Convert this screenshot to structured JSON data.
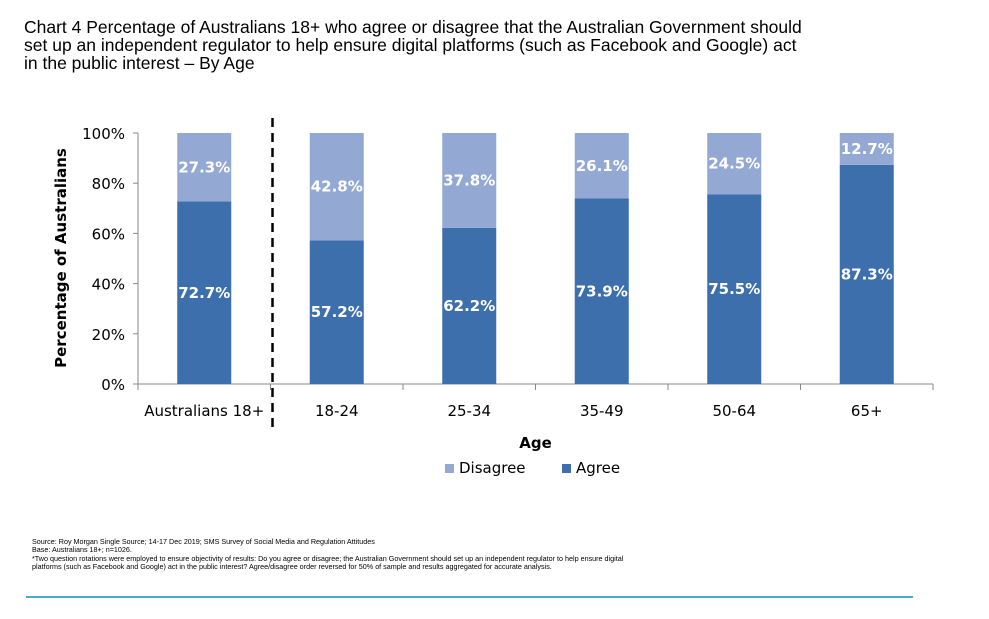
{
  "title_lines": [
    "Chart 4 Percentage of Australians 18+ who agree or disagree that the Australian Government should",
    "set up an independent regulator to help ensure digital platforms (such as Facebook and Google) act",
    "in the public interest – By Age"
  ],
  "source_lines": [
    "Source:  Roy  Morgan  Single  Source;  14-17  Dec  2019;  SMS  Survey  of  Social  Media  and  Regulation    Attitudes",
    "Base:  Australians  18+;  n=1026.",
    "*Two  question  rotations  were  employed  to ensure  objectivity  of  results:  Do you  agree  or  disagree;  the Australian  Government  should  set  up  an independent    regulator  to help  ensure  digital",
    "platforms  (such  as  Facebook  and  Google)  act  in the public  interest?  Agree/disagree   order  reversed  for  50%  of  sample  and  results  aggregated  for accurate  analysis."
  ],
  "colors": {
    "agree": "#3d6fad",
    "disagree": "#93a9d4",
    "label": "#ffffff",
    "rule": "#4bacc6"
  },
  "chart_data": {
    "type": "bar",
    "stacked": true,
    "categories": [
      "Australians 18+",
      "18-24",
      "25-34",
      "35-49",
      "50-64",
      "65+"
    ],
    "series": [
      {
        "name": "Agree",
        "values": [
          72.7,
          57.2,
          62.2,
          73.9,
          75.5,
          87.3
        ],
        "labels": [
          "72.7%",
          "57.2%",
          "62.2%",
          "73.9%",
          "75.5%",
          "87.3%"
        ]
      },
      {
        "name": "Disagree",
        "values": [
          27.3,
          42.8,
          37.8,
          26.1,
          24.5,
          12.7
        ],
        "labels": [
          "27.3%",
          "42.8%",
          "37.8%",
          "26.1%",
          "24.5%",
          "12.7%"
        ]
      }
    ],
    "xlabel": "Age",
    "ylabel": "Percentage of Australians",
    "ylim": [
      0,
      100
    ],
    "yticks": [
      "0%",
      "20%",
      "40%",
      "60%",
      "80%",
      "100%"
    ],
    "legend": {
      "position": "bottom",
      "entries": [
        "Disagree",
        "Agree"
      ]
    },
    "grid": false,
    "divider_after_category": "Australians 18+"
  }
}
